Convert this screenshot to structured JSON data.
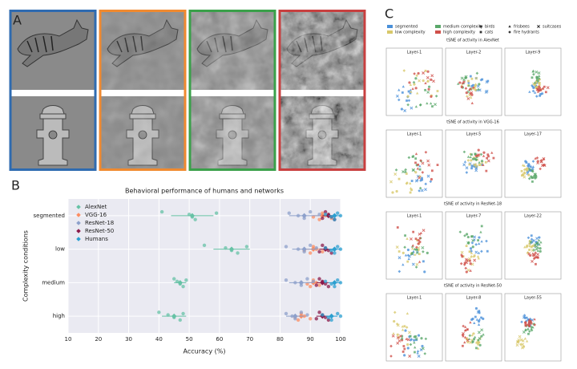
{
  "panel_labels": [
    "A",
    "B",
    "C"
  ],
  "chart_data": [
    {
      "type": "strip",
      "title": "Behavioral performance of humans and networks",
      "xlabel": "Accuracy (%)",
      "ylabel": "Complexity conditions",
      "categories": [
        "segmented",
        "low",
        "medium",
        "high"
      ],
      "xlim": [
        10,
        100
      ],
      "xticks": [
        10,
        20,
        30,
        40,
        50,
        60,
        70,
        80,
        90,
        100
      ],
      "grid": true,
      "legend": "upper left",
      "series": [
        {
          "name": "AlexNet",
          "color": "#66c2a5",
          "values": [
            51,
            64,
            47,
            45
          ],
          "errors": [
            7,
            6,
            2,
            4
          ],
          "points": [
            [
              41,
              50,
              51,
              52,
              59
            ],
            [
              55,
              62,
              64,
              66,
              69
            ],
            [
              45,
              46,
              47,
              48,
              49
            ],
            [
              40,
              43,
              45,
              47,
              48
            ]
          ]
        },
        {
          "name": "VGG-16",
          "color": "#fc8d62",
          "values": [
            94,
            91,
            91,
            87
          ],
          "errors": [
            3,
            3,
            2,
            2
          ],
          "points": [
            [
              91,
              93,
              94,
              95,
              97
            ],
            [
              88,
              90,
              91,
              92,
              94
            ],
            [
              89,
              90,
              91,
              92,
              93
            ],
            [
              85,
              86,
              87,
              88,
              90
            ]
          ]
        },
        {
          "name": "ResNet-18",
          "color": "#8da0cb",
          "values": [
            88,
            88,
            87,
            85
          ],
          "errors": [
            5,
            4,
            4,
            3
          ],
          "points": [
            [
              83,
              86,
              88,
              90,
              93
            ],
            [
              82,
              86,
              88,
              90,
              92
            ],
            [
              82,
              85,
              87,
              89,
              91
            ],
            [
              82,
              84,
              85,
              87,
              89
            ]
          ]
        },
        {
          "name": "ResNet-50",
          "color": "#8b1a4a",
          "values": [
            96,
            95,
            94,
            94
          ],
          "errors": [
            2,
            2,
            2,
            2
          ],
          "points": [
            [
              94,
              95,
              96,
              97,
              98
            ],
            [
              93,
              94,
              95,
              96,
              97
            ],
            [
              92,
              93,
              94,
              95,
              96
            ],
            [
              92,
              93,
              94,
              95,
              96
            ]
          ]
        },
        {
          "name": "Humans",
          "color": "#2b9fd0",
          "values": [
            98,
            98,
            98,
            97
          ],
          "errors": [
            2,
            2,
            2,
            2
          ],
          "points": [
            [
              95,
              97,
              98,
              99,
              100
            ],
            [
              95,
              97,
              98,
              99,
              100
            ],
            [
              95,
              97,
              98,
              99,
              100
            ],
            [
              94,
              96,
              97,
              99,
              100
            ]
          ]
        }
      ]
    }
  ],
  "tsne": {
    "color_legend": [
      {
        "name": "segmented",
        "color": "#4a90d9"
      },
      {
        "name": "low complexity",
        "color": "#d8c86a"
      },
      {
        "name": "medium complexity",
        "color": "#5aa86a"
      },
      {
        "name": "high complexity",
        "color": "#d0504a"
      }
    ],
    "shape_legend": [
      "birds",
      "cats",
      "frisbees",
      "fire hydrants",
      "suitcases"
    ],
    "rows": [
      {
        "title": "tSNE of activity in AlexNet",
        "layers": [
          "Layer-1",
          "Layer-2",
          "Layer-9"
        ]
      },
      {
        "title": "tSNE of activity in VGG-16",
        "layers": [
          "Layer-1",
          "Layer-5",
          "Layer-17"
        ]
      },
      {
        "title": "tSNE of activity in ResNet-18",
        "layers": [
          "Layer-1",
          "Layer-7",
          "Layer-22"
        ]
      },
      {
        "title": "tSNE of activity in ResNet-50",
        "layers": [
          "Layer-1",
          "Layer-8",
          "Layer-55"
        ]
      }
    ]
  }
}
